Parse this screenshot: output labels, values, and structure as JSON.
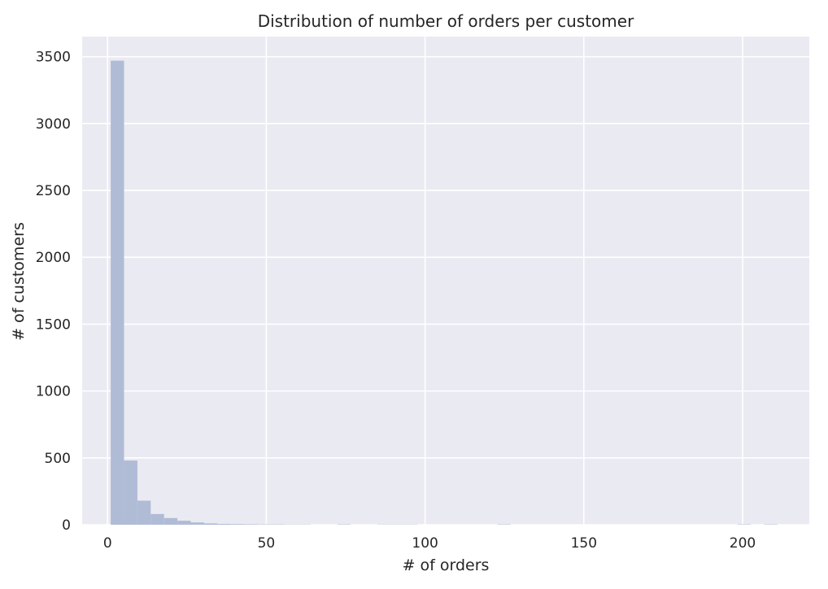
{
  "chart_data": {
    "type": "bar",
    "title": "Distribution of number of orders per customer",
    "xlabel": "# of orders",
    "ylabel": "# of customers",
    "xlim": [
      -8,
      221
    ],
    "ylim": [
      0,
      3650
    ],
    "xticks": [
      0,
      50,
      100,
      150,
      200
    ],
    "yticks": [
      0,
      500,
      1000,
      1500,
      2000,
      2500,
      3000,
      3500
    ],
    "grid": true,
    "bar_color": "#b0bcd6",
    "background_color": "#eaeaf2",
    "grid_color": "#ffffff",
    "bins": [
      {
        "start": 1,
        "end": 5.2,
        "count": 3470
      },
      {
        "start": 5.2,
        "end": 9.4,
        "count": 480
      },
      {
        "start": 9.4,
        "end": 13.6,
        "count": 180
      },
      {
        "start": 13.6,
        "end": 17.8,
        "count": 80
      },
      {
        "start": 17.8,
        "end": 22.0,
        "count": 50
      },
      {
        "start": 22.0,
        "end": 26.2,
        "count": 30
      },
      {
        "start": 26.2,
        "end": 30.4,
        "count": 17
      },
      {
        "start": 30.4,
        "end": 34.6,
        "count": 10
      },
      {
        "start": 34.6,
        "end": 38.8,
        "count": 6
      },
      {
        "start": 38.8,
        "end": 43.0,
        "count": 5
      },
      {
        "start": 43.0,
        "end": 47.2,
        "count": 4
      },
      {
        "start": 47.2,
        "end": 51.4,
        "count": 3
      },
      {
        "start": 51.4,
        "end": 55.6,
        "count": 3
      },
      {
        "start": 55.6,
        "end": 59.8,
        "count": 2
      },
      {
        "start": 59.8,
        "end": 64.0,
        "count": 2
      },
      {
        "start": 72.4,
        "end": 76.6,
        "count": 3
      },
      {
        "start": 85.0,
        "end": 89.2,
        "count": 2
      },
      {
        "start": 89.2,
        "end": 93.4,
        "count": 2
      },
      {
        "start": 93.4,
        "end": 97.6,
        "count": 2
      },
      {
        "start": 122.8,
        "end": 127.0,
        "count": 3
      },
      {
        "start": 198.4,
        "end": 202.6,
        "count": 3
      },
      {
        "start": 206.8,
        "end": 211.0,
        "count": 3
      }
    ]
  }
}
